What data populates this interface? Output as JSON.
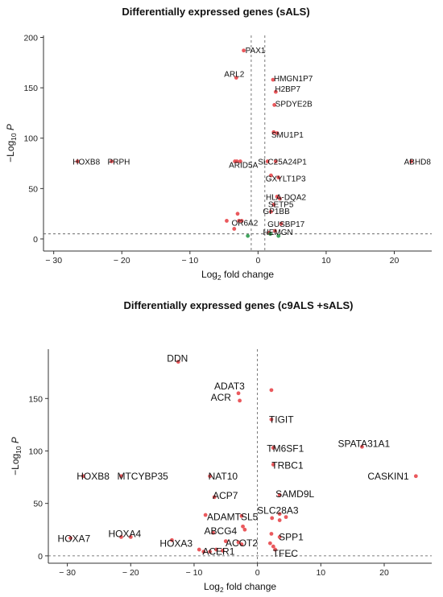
{
  "chart_data": [
    {
      "type": "scatter",
      "title": "Differentially expressed genes (sALS)",
      "xlabel_parts": [
        "Log",
        "2",
        " fold change"
      ],
      "ylabel_parts": [
        "−Log",
        "10",
        " P"
      ],
      "xlim": [
        -31.5,
        25.5
      ],
      "ylim": [
        -12,
        202
      ],
      "xticks": [
        -30,
        -20,
        -10,
        0,
        10,
        20
      ],
      "yticks": [
        0,
        50,
        100,
        150,
        200
      ],
      "cutoffs": {
        "fc": [
          -1,
          1
        ],
        "p": 5
      },
      "colors": {
        "sig": "#e8474b",
        "nonsig": "#2e9b4e",
        "cutoff": "#555555",
        "axis": "#333333"
      },
      "points": [
        {
          "x": -2.1,
          "y": 187,
          "label": "PAX1",
          "sig": true
        },
        {
          "x": -3.2,
          "y": 160,
          "label": "ARL2",
          "sig": true
        },
        {
          "x": 2.2,
          "y": 158,
          "label": "HMGN1P7",
          "sig": true
        },
        {
          "x": 2.6,
          "y": 146,
          "label": "H2BP7",
          "sig": true
        },
        {
          "x": 2.4,
          "y": 133,
          "label": "SPDYE2B",
          "sig": true
        },
        {
          "x": 2.3,
          "y": 106,
          "label": "SMU1P1",
          "sig": true
        },
        {
          "x": 2.8,
          "y": 105,
          "label": "",
          "sig": true
        },
        {
          "x": -26.5,
          "y": 77,
          "label": "HOXB8",
          "sig": true
        },
        {
          "x": -21.5,
          "y": 77,
          "label": "PRPH",
          "sig": true
        },
        {
          "x": 22.5,
          "y": 77,
          "label": "ABHD8",
          "sig": true
        },
        {
          "x": -3.1,
          "y": 77,
          "label": "ARID5A",
          "sig": true
        },
        {
          "x": -3.4,
          "y": 77,
          "label": "",
          "sig": true
        },
        {
          "x": -2.6,
          "y": 77,
          "label": "",
          "sig": true
        },
        {
          "x": 1.4,
          "y": 77,
          "label": "SLC25A24P1",
          "sig": true
        },
        {
          "x": 2.6,
          "y": 77,
          "label": "",
          "sig": true
        },
        {
          "x": 1.9,
          "y": 63,
          "label": "",
          "sig": true
        },
        {
          "x": 3.0,
          "y": 61,
          "label": "GXYLT1P3",
          "sig": true
        },
        {
          "x": 2.8,
          "y": 42,
          "label": "HLA-DQA2",
          "sig": true
        },
        {
          "x": 3.2,
          "y": 40,
          "label": "",
          "sig": true
        },
        {
          "x": 2.3,
          "y": 34,
          "label": "SETP5",
          "sig": true
        },
        {
          "x": 1.9,
          "y": 27,
          "label": "GP1BB",
          "sig": true
        },
        {
          "x": -3.0,
          "y": 25,
          "label": "",
          "sig": true
        },
        {
          "x": -4.6,
          "y": 18,
          "label": "OR6A2",
          "sig": true
        },
        {
          "x": -2.8,
          "y": 18,
          "label": "",
          "sig": true
        },
        {
          "x": -2.4,
          "y": 18,
          "label": "",
          "sig": true
        },
        {
          "x": 3.4,
          "y": 15,
          "label": "GUSBP17",
          "sig": true
        },
        {
          "x": 2.5,
          "y": 8,
          "label": "HEMGN",
          "sig": true
        },
        {
          "x": 1.6,
          "y": 6,
          "label": "",
          "sig": true
        },
        {
          "x": -3.5,
          "y": 10,
          "label": "",
          "sig": true
        },
        {
          "x": -1.5,
          "y": 3,
          "label": "",
          "sig": false
        },
        {
          "x": 1.8,
          "y": 5,
          "label": "",
          "sig": false
        },
        {
          "x": 3.0,
          "y": 3,
          "label": "",
          "sig": false
        }
      ]
    },
    {
      "type": "scatter",
      "title": "Differentially expressed genes (c9ALS +sALS)",
      "xlabel_parts": [
        "Log",
        "2",
        " fold change"
      ],
      "ylabel_parts": [
        "−Log",
        "10",
        " P"
      ],
      "xlim": [
        -33,
        27.5
      ],
      "ylim": [
        -7,
        197
      ],
      "xticks": [
        -30,
        -20,
        -10,
        0,
        10,
        20
      ],
      "yticks": [
        0,
        50,
        100,
        150
      ],
      "cutoffs": {
        "fc": [
          0
        ],
        "p": 0
      },
      "colors": {
        "sig": "#e8474b",
        "nonsig": "#2e9b4e",
        "cutoff": "#555555",
        "axis": "#333333"
      },
      "points": [
        {
          "x": -12.5,
          "y": 185,
          "label": "DDN",
          "sig": true
        },
        {
          "x": 2.2,
          "y": 158,
          "label": "",
          "sig": true
        },
        {
          "x": -3.0,
          "y": 155,
          "label": "ADAT3",
          "sig": true
        },
        {
          "x": -2.8,
          "y": 148,
          "label": "ACR",
          "sig": true
        },
        {
          "x": 2.2,
          "y": 130,
          "label": "TIGIT",
          "sig": true
        },
        {
          "x": 2.5,
          "y": 103,
          "label": "TM6SF1",
          "sig": true
        },
        {
          "x": 16.5,
          "y": 104,
          "label": "SPATA31A1",
          "sig": true
        },
        {
          "x": 2.5,
          "y": 87,
          "label": "TRBC1",
          "sig": true
        },
        {
          "x": -27.5,
          "y": 76,
          "label": "HOXB8",
          "sig": true
        },
        {
          "x": -21.5,
          "y": 76,
          "label": "MTCYBP35",
          "sig": true
        },
        {
          "x": -7.5,
          "y": 76,
          "label": "NAT10",
          "sig": true
        },
        {
          "x": 25.0,
          "y": 76,
          "label": "CASKIN1",
          "sig": true
        },
        {
          "x": 3.5,
          "y": 58,
          "label": "SAMD9L",
          "sig": true
        },
        {
          "x": -6.8,
          "y": 56,
          "label": "ACP7",
          "sig": true
        },
        {
          "x": -8.2,
          "y": 39,
          "label": "",
          "sig": true
        },
        {
          "x": -2.5,
          "y": 38,
          "label": "ADAMTSL5",
          "sig": true
        },
        {
          "x": 2.3,
          "y": 36,
          "label": "",
          "sig": true
        },
        {
          "x": 3.5,
          "y": 40,
          "label": "SLC28A3",
          "sig": true
        },
        {
          "x": 4.5,
          "y": 37,
          "label": "",
          "sig": true
        },
        {
          "x": 3.5,
          "y": 34,
          "label": "",
          "sig": true
        },
        {
          "x": -2.3,
          "y": 28,
          "label": "",
          "sig": true
        },
        {
          "x": -2.0,
          "y": 25,
          "label": "",
          "sig": true
        },
        {
          "x": -7.0,
          "y": 22,
          "label": "ABCG4",
          "sig": true
        },
        {
          "x": 2.2,
          "y": 21,
          "label": "",
          "sig": true
        },
        {
          "x": 3.5,
          "y": 18,
          "label": "SPP1",
          "sig": true
        },
        {
          "x": -29.5,
          "y": 17,
          "label": "HOXA7",
          "sig": true
        },
        {
          "x": -21.5,
          "y": 18,
          "label": "HOXA4",
          "sig": true
        },
        {
          "x": -20.0,
          "y": 18,
          "label": "",
          "sig": true
        },
        {
          "x": -13.5,
          "y": 15,
          "label": "HOXA3",
          "sig": true
        },
        {
          "x": -5.0,
          "y": 14,
          "label": "",
          "sig": true
        },
        {
          "x": -3.0,
          "y": 13,
          "label": "ACOT2",
          "sig": true
        },
        {
          "x": -2.5,
          "y": 11,
          "label": "",
          "sig": true
        },
        {
          "x": 2.0,
          "y": 12,
          "label": "",
          "sig": true
        },
        {
          "x": 2.5,
          "y": 9,
          "label": "",
          "sig": true
        },
        {
          "x": 2.8,
          "y": 6,
          "label": "TFEC",
          "sig": true
        },
        {
          "x": -5.5,
          "y": 5,
          "label": "ACER1",
          "sig": true
        },
        {
          "x": -8.5,
          "y": 4,
          "label": "",
          "sig": true
        },
        {
          "x": -7.5,
          "y": 4,
          "label": "",
          "sig": true
        },
        {
          "x": -6.5,
          "y": 6,
          "label": "",
          "sig": true
        },
        {
          "x": -9.2,
          "y": 6,
          "label": "",
          "sig": true
        }
      ]
    }
  ]
}
